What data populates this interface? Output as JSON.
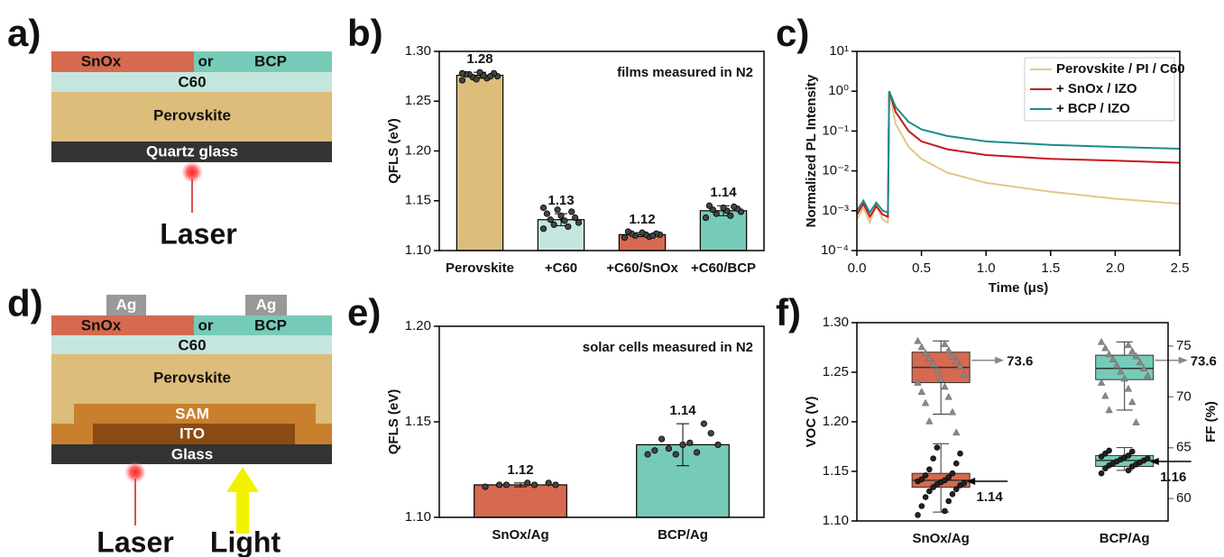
{
  "panel_labels": [
    "a)",
    "b)",
    "c)",
    "d)",
    "e)",
    "f)"
  ],
  "diagrams": {
    "a": {
      "snox": "SnOx",
      "or": "or",
      "bcp": "BCP",
      "c60": "C60",
      "perovskite": "Perovskite",
      "glass": "Quartz glass",
      "laser": "Laser"
    },
    "d": {
      "ag_left": "Ag",
      "ag_right": "Ag",
      "snox": "SnOx",
      "or": "or",
      "bcp": "BCP",
      "c60": "C60",
      "perovskite": "Perovskite",
      "sam": "SAM",
      "ito": "ITO",
      "glass": "Glass",
      "laser": "Laser",
      "light": "Light"
    }
  },
  "chart_data": [
    {
      "type": "bar",
      "ylabel": "QFLS (eV)",
      "annotation": "films measured in N2",
      "categories": [
        "Perovskite",
        "+C60",
        "+C60/SnOx",
        "+C60/BCP"
      ],
      "values": [
        1.276,
        1.131,
        1.116,
        1.14
      ],
      "value_labels": [
        "1.28",
        "1.13",
        "1.12",
        "1.14"
      ],
      "errors": [
        0.003,
        0.006,
        0.002,
        0.005
      ],
      "colors": [
        "#dcbd7a",
        "#c5e6df",
        "#d56a50",
        "#76cbb8"
      ],
      "points": [
        [
          1.271,
          1.273,
          1.274,
          1.275,
          1.276,
          1.277,
          1.278,
          1.279,
          1.277,
          1.275,
          1.272,
          1.278
        ],
        [
          1.122,
          1.124,
          1.126,
          1.128,
          1.13,
          1.131,
          1.133,
          1.135,
          1.137,
          1.139,
          1.141,
          1.143
        ],
        [
          1.113,
          1.114,
          1.115,
          1.116,
          1.116,
          1.117,
          1.117,
          1.118,
          1.119,
          1.115
        ],
        [
          1.133,
          1.135,
          1.137,
          1.139,
          1.14,
          1.141,
          1.142,
          1.143,
          1.145,
          1.144
        ]
      ],
      "ylim": [
        1.1,
        1.3
      ],
      "yticks": [
        {
          "value": 1.1,
          "label": "1.10"
        },
        1.15,
        {
          "value": 1.2,
          "label": "1.20"
        },
        1.25,
        {
          "value": 1.3,
          "label": "1.30"
        }
      ]
    },
    {
      "type": "line",
      "xlabel": "Time (μs)",
      "ylabel": "Normalized PL Intensity",
      "log_y": true,
      "legend": "top-right",
      "x": [
        0,
        0.05,
        0.1,
        0.15,
        0.2,
        0.24,
        0.25,
        0.3,
        0.4,
        0.5,
        0.7,
        1.0,
        1.5,
        2.0,
        2.5
      ],
      "series": [
        {
          "name": "Perovskite / PI / C60",
          "color": "#e3c68a",
          "values": [
            0.0006,
            0.0012,
            0.0005,
            0.0014,
            0.0006,
            0.0005,
            1,
            0.15,
            0.04,
            0.02,
            0.009,
            0.005,
            0.003,
            0.002,
            0.0015
          ]
        },
        {
          "name": "+ SnOx / IZO",
          "color": "#c8161d",
          "values": [
            0.0008,
            0.0015,
            0.0007,
            0.0013,
            0.0008,
            0.0007,
            1,
            0.3,
            0.1,
            0.055,
            0.035,
            0.025,
            0.02,
            0.018,
            0.016
          ]
        },
        {
          "name": "+ BCP / IZO",
          "color": "#1a8c8a",
          "values": [
            0.001,
            0.0018,
            0.0009,
            0.0016,
            0.001,
            0.0009,
            1,
            0.4,
            0.17,
            0.11,
            0.075,
            0.055,
            0.045,
            0.04,
            0.036
          ]
        }
      ],
      "xlim": [
        0,
        2.5
      ],
      "xticks": [
        {
          "value": 0,
          "label": "0.0"
        },
        0.5,
        {
          "value": 1,
          "label": "1.0"
        },
        1.5,
        {
          "value": 2,
          "label": "2.0"
        },
        2.5
      ],
      "ylim": [
        0.0001,
        10
      ],
      "yticks": [
        {
          "value": 0.0001,
          "label": "10⁻⁴"
        },
        {
          "value": 0.001,
          "label": "10⁻³"
        },
        {
          "value": 0.01,
          "label": "10⁻²"
        },
        {
          "value": 0.1,
          "label": "10⁻¹"
        },
        {
          "value": 1,
          "label": "10⁰"
        },
        {
          "value": 10,
          "label": "10¹"
        }
      ]
    },
    {
      "type": "bar",
      "ylabel": "QFLS (eV)",
      "annotation": "solar cells measured in N2",
      "categories": [
        "SnOx/Ag",
        "BCP/Ag"
      ],
      "values": [
        1.117,
        1.138
      ],
      "value_labels": [
        "1.12",
        "1.14"
      ],
      "errors": [
        0.001,
        0.011
      ],
      "colors": [
        "#d56a50",
        "#76cbb8"
      ],
      "points": [
        [
          1.116,
          1.117,
          1.117,
          1.117,
          1.118,
          1.117,
          1.118
        ],
        [
          1.133,
          1.134,
          1.136,
          1.138,
          1.139,
          1.141,
          1.144,
          1.138,
          1.135,
          1.149,
          1.133
        ]
      ],
      "ylim": [
        1.1,
        1.2
      ],
      "yticks": [
        {
          "value": 1.1,
          "label": "1.10"
        },
        1.15,
        {
          "value": 1.2,
          "label": "1.20"
        }
      ]
    },
    {
      "type": "box",
      "ylabel": "VOC (V)",
      "y2label": "FF (%)",
      "categories": [
        "SnOx/Ag",
        "BCP/Ag"
      ],
      "colors": [
        "#d56a50",
        "#76cbb8"
      ],
      "ylim": [
        1.1,
        1.3
      ],
      "yticks": [
        {
          "value": 1.1,
          "label": "1.10"
        },
        1.15,
        {
          "value": 1.2,
          "label": "1.20"
        },
        1.25,
        {
          "value": 1.3,
          "label": "1.30"
        }
      ],
      "y2lim": [
        57.8,
        77.3
      ],
      "y2ticks": [
        60,
        65,
        70,
        75
      ],
      "series": [
        {
          "axis": "y2",
          "marker": "triangle",
          "color": "#888888",
          "boxes": [
            {
              "whisker_low": 68.3,
              "q1": 71.4,
              "median": 72.9,
              "q3": 74.4,
              "whisker_high": 75.5
            },
            {
              "whisker_low": 68.7,
              "q1": 71.7,
              "median": 72.8,
              "q3": 74.1,
              "whisker_high": 75.4
            }
          ],
          "means": [
            73.6,
            73.6
          ],
          "value_labels": [
            "73.6",
            "73.6"
          ],
          "points": [
            [
              75.5,
              75.2,
              74.9,
              74.6,
              74.3,
              74.0,
              73.8,
              73.5,
              73.2,
              73.0,
              72.6,
              72.2,
              71.8,
              71.4,
              71.0,
              70.5,
              70.0,
              69.4,
              68.5,
              67.6,
              66.5
            ],
            [
              75.4,
              75.1,
              74.8,
              74.5,
              74.2,
              74.0,
              73.7,
              73.4,
              73.1,
              72.8,
              72.5,
              72.1,
              71.8,
              71.4,
              70.8,
              70.1,
              69.5,
              68.7,
              67.5
            ]
          ]
        },
        {
          "axis": "y",
          "marker": "circle",
          "color": "#222222",
          "boxes": [
            {
              "whisker_low": 1.109,
              "q1": 1.134,
              "median": 1.141,
              "q3": 1.148,
              "whisker_high": 1.178
            },
            {
              "whisker_low": 1.151,
              "q1": 1.155,
              "median": 1.161,
              "q3": 1.166,
              "whisker_high": 1.174
            }
          ],
          "means": [
            1.14,
            1.16
          ],
          "value_labels": [
            "1.14",
            "1.16"
          ],
          "points": [
            [
              1.106,
              1.11,
              1.115,
              1.12,
              1.124,
              1.127,
              1.13,
              1.132,
              1.134,
              1.136,
              1.137,
              1.138,
              1.139,
              1.14,
              1.141,
              1.142,
              1.144,
              1.146,
              1.148,
              1.152,
              1.158,
              1.163,
              1.168,
              1.174
            ],
            [
              1.148,
              1.151,
              1.153,
              1.155,
              1.156,
              1.157,
              1.158,
              1.159,
              1.16,
              1.161,
              1.162,
              1.163,
              1.164,
              1.165,
              1.166,
              1.168,
              1.17,
              1.171
            ]
          ]
        }
      ]
    }
  ]
}
